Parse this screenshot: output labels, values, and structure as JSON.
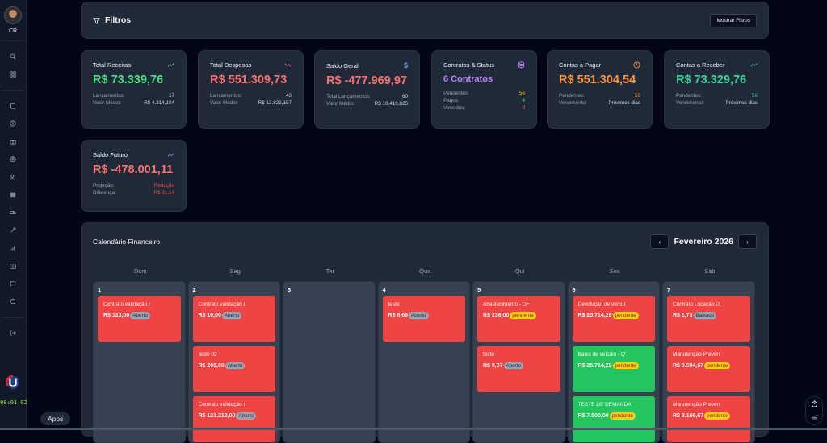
{
  "sidebar": {
    "user_initials": "CR",
    "icons": [
      "search-icon",
      "grid-icon",
      "clipboard-icon",
      "dollar-icon",
      "briefcase-icon",
      "globe-icon",
      "users-icon",
      "inbox-icon",
      "truck-icon",
      "tool-icon",
      "bar-chart-icon",
      "book-icon",
      "message-icon",
      "circle-icon"
    ],
    "logout_icon": "logout-icon",
    "timer": "00:01:02"
  },
  "filters": {
    "title": "Filtros",
    "toggle_label": "Mostrar Filtros"
  },
  "cards": [
    {
      "title": "Total Receitas",
      "icon": "trending-up-icon",
      "value": "R$ 73.339,76",
      "value_color": "#4ade80",
      "rows": [
        {
          "label": "Lançamentos:",
          "value": "17"
        },
        {
          "label": "Valor Médio:",
          "value": "R$ 4.314,104"
        }
      ]
    },
    {
      "title": "Total Despesas",
      "icon": "trending-down-icon",
      "value": "R$ 551.309,73",
      "value_color": "#f87171",
      "rows": [
        {
          "label": "Lançamentos:",
          "value": "43"
        },
        {
          "label": "Valor Médio:",
          "value": "R$ 12.821,157"
        }
      ]
    },
    {
      "title": "Saldo Geral",
      "icon": "dollar-icon",
      "value": "R$ -477.969,97",
      "value_color": "#f87171",
      "rows": [
        {
          "label": "Total Lançamentos:",
          "value": "60"
        },
        {
          "label": "Valor Médio:",
          "value": "R$ 10.410,825"
        }
      ]
    },
    {
      "title": "Contratos & Status",
      "icon": "database-icon",
      "value": "6 Contratos",
      "value_color": "#c084fc",
      "rows": [
        {
          "label": "Pendentes:",
          "value": "56",
          "color": "#facc15"
        },
        {
          "label": "Pagos:",
          "value": "4",
          "color": "#4ade80"
        },
        {
          "label": "Vencidos:",
          "value": "0",
          "color": "#f87171"
        }
      ]
    },
    {
      "title": "Contas a Pagar",
      "icon": "clock-icon",
      "value": "R$ 551.304,54",
      "value_color": "#fb923c",
      "rows": [
        {
          "label": "Pendentes:",
          "value": "56",
          "color": "#fb923c"
        },
        {
          "label": "Vencimento:",
          "value": "Próximos dias"
        }
      ]
    },
    {
      "title": "Contas a Receber",
      "icon": "trending-up-icon",
      "value": "R$ 73.329,76",
      "value_color": "#34d399",
      "rows": [
        {
          "label": "Pendentes:",
          "value": "56",
          "color": "#34d399"
        },
        {
          "label": "Vencimento:",
          "value": "Próximos dias"
        }
      ]
    },
    {
      "title": "Saldo Futuro",
      "icon": "trending-up-icon",
      "value": "R$ -478.001,11",
      "value_color": "#f87171",
      "rows": [
        {
          "label": "Projeção:",
          "value": "Redução",
          "color": "#ef4444"
        },
        {
          "label": "Diferença:",
          "value": "R$ 31,14",
          "color": "#ef4444"
        }
      ]
    }
  ],
  "calendar": {
    "title": "Calendário Financeiro",
    "month": "Fevereiro 2026",
    "weekdays": [
      "Dom",
      "Seg",
      "Ter",
      "Qua",
      "Qui",
      "Sex",
      "Sáb"
    ],
    "days": [
      {
        "num": "1",
        "events": [
          {
            "title": "Contrato validação I",
            "amount": "R$ 123,00",
            "status": "Aberto",
            "color": "red",
            "badge": "grey"
          }
        ]
      },
      {
        "num": "2",
        "events": [
          {
            "title": "Contrato validação I",
            "amount": "R$ 10,00",
            "status": "Aberto",
            "color": "red",
            "badge": "grey"
          },
          {
            "title": "teste 02",
            "amount": "R$ 200,00",
            "status": "Aberto",
            "color": "red",
            "badge": "grey"
          },
          {
            "title": "Contrato validação I",
            "amount": "R$ 121.212,00",
            "status": "Aberto",
            "color": "red",
            "badge": "grey"
          }
        ]
      },
      {
        "num": "3",
        "events": []
      },
      {
        "num": "4",
        "events": [
          {
            "title": "teste",
            "amount": "R$ 6,66",
            "status": "Aberto",
            "color": "red",
            "badge": "grey"
          }
        ]
      },
      {
        "num": "5",
        "events": [
          {
            "title": "Abastecimento - OF",
            "amount": "R$ 236,00",
            "status": "pendente",
            "color": "red",
            "badge": "yellow"
          },
          {
            "title": "teste",
            "amount": "R$ 9,87",
            "status": "Aberto",
            "color": "red",
            "badge": "grey"
          }
        ]
      },
      {
        "num": "6",
        "events": [
          {
            "title": "Devolução de veícul",
            "amount": "R$ 25.714,29",
            "status": "pendente",
            "color": "red",
            "badge": "yellow"
          },
          {
            "title": "Baixa de veículo - Q'",
            "amount": "R$ 25.714,29",
            "status": "pendente",
            "color": "green",
            "badge": "yellow"
          },
          {
            "title": "TESTE DE DEMANDA",
            "amount": "R$ 7.500,00",
            "status": "pendente",
            "color": "green",
            "badge": "yellow"
          }
        ]
      },
      {
        "num": "7",
        "events": [
          {
            "title": "Contrato Locação O.",
            "amount": "R$ 1,73",
            "status": "Baixado",
            "color": "red",
            "badge": "grey"
          },
          {
            "title": "Manutenção Preven",
            "amount": "R$ 5.594,67",
            "status": "pendente",
            "color": "red",
            "badge": "yellow"
          },
          {
            "title": "Manutenção Preven",
            "amount": "R$ 3.166,67",
            "status": "pendente",
            "color": "red",
            "badge": "yellow"
          }
        ]
      }
    ]
  },
  "apps_tooltip": "Apps",
  "floating_controls": [
    "timer-icon",
    "menu-icon"
  ]
}
